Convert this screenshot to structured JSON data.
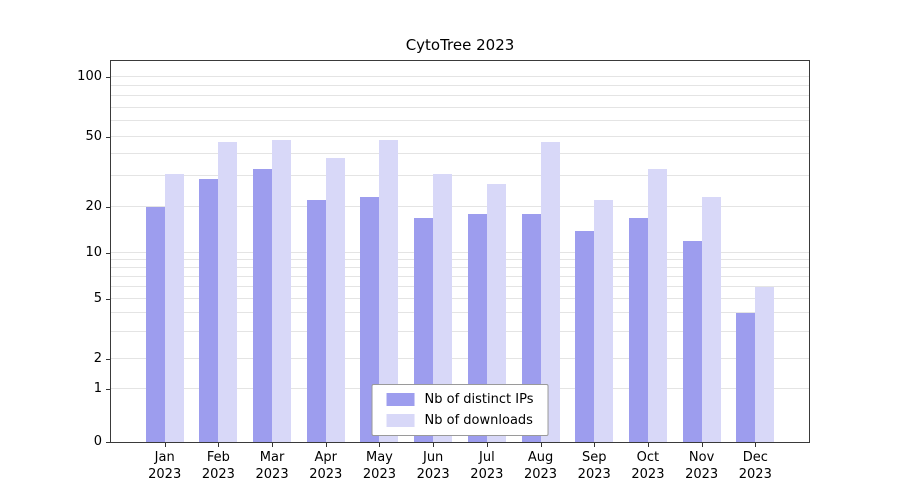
{
  "chart_data": {
    "type": "bar",
    "title": "CytoTree 2023",
    "categories": [
      "Jan\n2023",
      "Feb\n2023",
      "Mar\n2023",
      "Apr\n2023",
      "May\n2023",
      "Jun\n2023",
      "Jul\n2023",
      "Aug\n2023",
      "Sep\n2023",
      "Oct\n2023",
      "Nov\n2023",
      "Dec\n2023"
    ],
    "series": [
      {
        "name": "Nb of distinct IPs",
        "color": "#9d9dee",
        "values": [
          20,
          29,
          33,
          22,
          23,
          17,
          18,
          18,
          14,
          17,
          12,
          4
        ]
      },
      {
        "name": "Nb of downloads",
        "color": "#d8d8f8",
        "values": [
          31,
          47,
          48,
          38,
          48,
          31,
          27,
          47,
          22,
          33,
          23,
          6
        ]
      }
    ],
    "yticks": [
      0,
      1,
      2,
      5,
      10,
      20,
      50,
      100
    ],
    "minor_gridlines": [
      3,
      4,
      6,
      7,
      8,
      9,
      30,
      40,
      60,
      70,
      80,
      90
    ],
    "scale": "symlog",
    "ylim": [
      0,
      130
    ],
    "grid": "horizontal",
    "legend_position": "bottom-center"
  }
}
